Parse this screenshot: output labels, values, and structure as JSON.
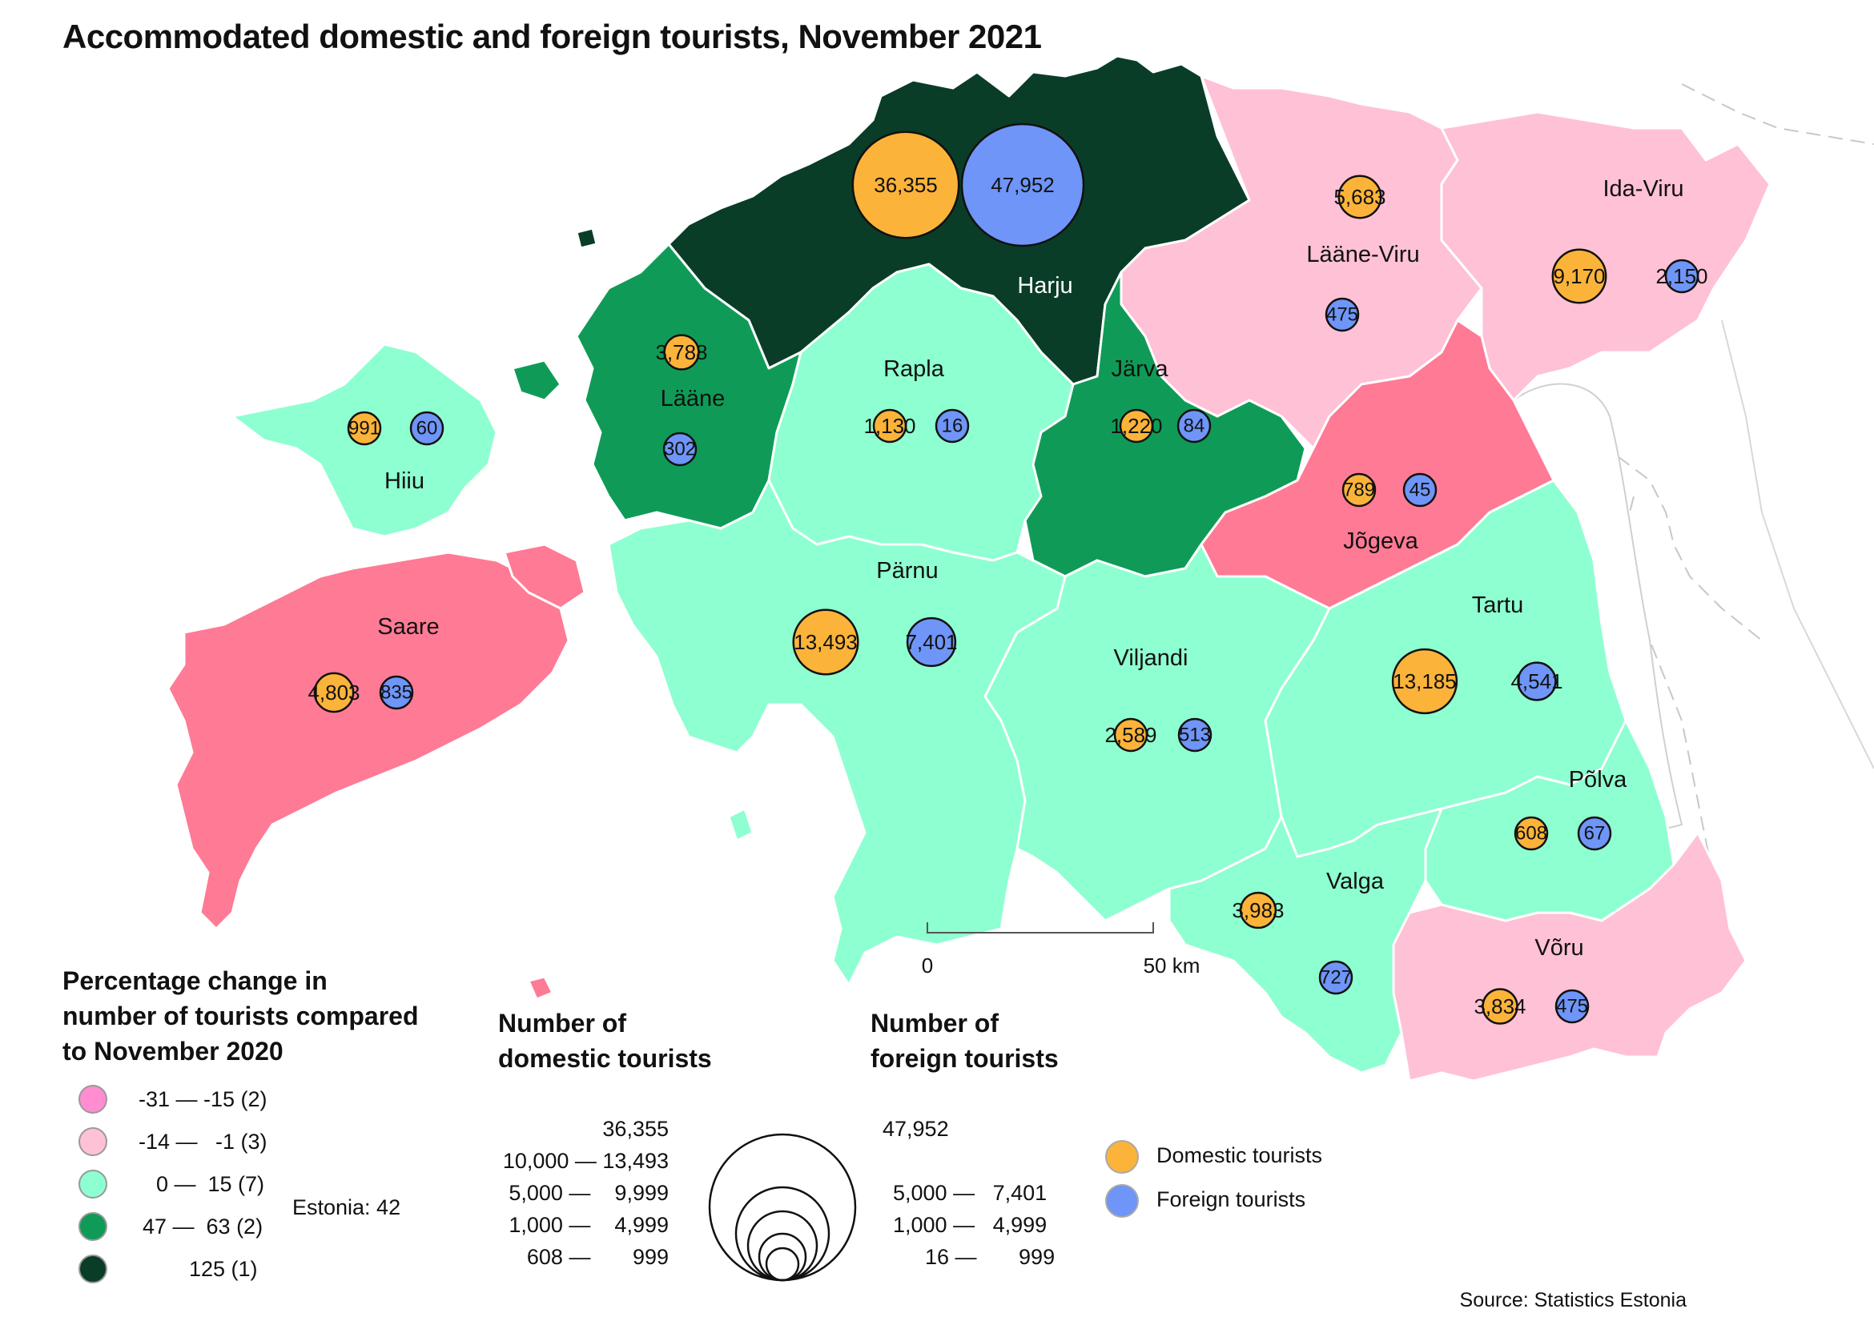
{
  "title": "Accommodated domestic and foreign tourists, November 2021",
  "colors": {
    "domestic": "#fbb33a",
    "foreign": "#6e95f7",
    "class_1": "#ff8dd0",
    "class_2": "#ffc1d6",
    "class_3": "#8effd0",
    "class_4": "#0f9b57",
    "class_5": "#0a3d28",
    "saare_jogeva": "#ff7a95"
  },
  "regions": [
    {
      "name": "Harju",
      "domestic": "36,355",
      "foreign": "47,952"
    },
    {
      "name": "Lääne-Viru",
      "domestic": "5,683",
      "foreign": "475"
    },
    {
      "name": "Ida-Viru",
      "domestic": "9,170",
      "foreign": "2,150"
    },
    {
      "name": "Lääne",
      "domestic": "3,788",
      "foreign": "302"
    },
    {
      "name": "Rapla",
      "domestic": "1,130",
      "foreign": "16"
    },
    {
      "name": "Järva",
      "domestic": "1,220",
      "foreign": "84"
    },
    {
      "name": "Hiiu",
      "domestic": "991",
      "foreign": "60"
    },
    {
      "name": "Jõgeva",
      "domestic": "789",
      "foreign": "45"
    },
    {
      "name": "Saare",
      "domestic": "4,803",
      "foreign": "835"
    },
    {
      "name": "Pärnu",
      "domestic": "13,493",
      "foreign": "7,401"
    },
    {
      "name": "Viljandi",
      "domestic": "2,589",
      "foreign": "513"
    },
    {
      "name": "Tartu",
      "domestic": "13,185",
      "foreign": "4,541"
    },
    {
      "name": "Põlva",
      "domestic": "608",
      "foreign": "67"
    },
    {
      "name": "Valga",
      "domestic": "3,983",
      "foreign": "727"
    },
    {
      "name": "Võru",
      "domestic": "3,834",
      "foreign": "475"
    }
  ],
  "scale": {
    "start": "0",
    "end": "50 km"
  },
  "legend_change": {
    "title_lines": [
      "Percentage change in",
      "number of tourists compared",
      "to November 2020"
    ],
    "classes": [
      "-31 — -15 (2)",
      "-14 —   -1 (3)",
      "0 —  15 (7)",
      "47 —  63 (2)",
      "125 (1)"
    ],
    "estonia": "Estonia: 42"
  },
  "legend_domestic": {
    "title_lines": [
      "Number of",
      "domestic tourists"
    ],
    "values": [
      "36,355",
      "10,000 — 13,493",
      "5,000 —    9,999",
      "1,000 —    4,999",
      "608 —       999"
    ]
  },
  "legend_foreign": {
    "title_lines": [
      "Number of",
      "foreign tourists"
    ],
    "values": [
      "47,952",
      "5,000 —   7,401",
      "1,000 —   4,999",
      "16 —       999"
    ]
  },
  "legend_type": {
    "domestic_label": "Domestic tourists",
    "foreign_label": "Foreign tourists"
  },
  "source": "Source: Statistics Estonia"
}
